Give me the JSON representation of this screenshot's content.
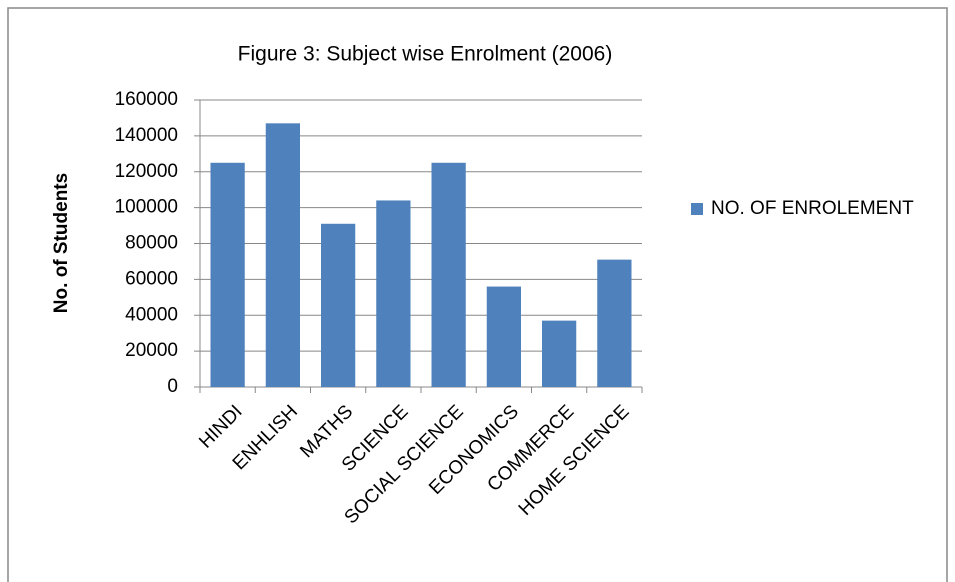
{
  "chart_data": {
    "type": "bar",
    "title": "Figure 3: Subject wise Enrolment (2006)",
    "y_label": "No. of Students",
    "categories": [
      "HINDI",
      "ENHLISH",
      "MATHS",
      "SCIENCE",
      "SOCIAL SCIENCE",
      "ECONOMICS",
      "COMMERCE",
      "HOME SCIENCE"
    ],
    "series": [
      {
        "name": "NO. OF ENROLEMENT",
        "color": "#4f81bd",
        "values": [
          125000,
          147000,
          91000,
          104000,
          125000,
          56000,
          37000,
          71000
        ]
      }
    ],
    "ylim": [
      0,
      160000
    ],
    "yticks": [
      0,
      20000,
      40000,
      60000,
      80000,
      100000,
      120000,
      140000,
      160000
    ],
    "grid": true,
    "legend": "right"
  }
}
